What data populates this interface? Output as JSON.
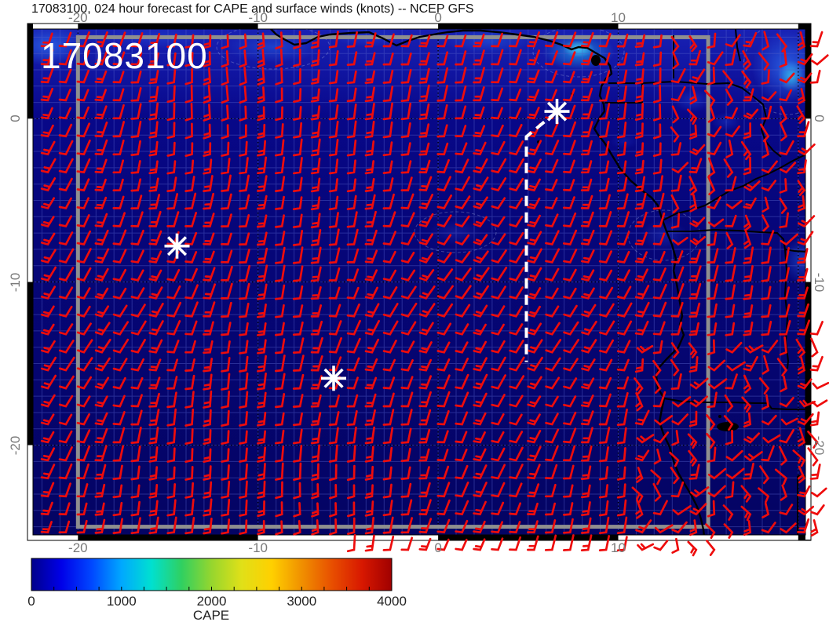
{
  "title": "17083100, 024 hour forecast for CAPE and surface winds (knots) -- NCEP GFS",
  "map": {
    "init_label": "17083100"
  },
  "chart_data": {
    "type": "heatmap",
    "subtype": "geographic map: shaded CAPE field with wind-barb vector overlay",
    "title": "17083100, 024 hour forecast for CAPE and surface winds (knots) -- NCEP GFS",
    "model": "NCEP GFS",
    "init_time": "17083100",
    "forecast_hour": "024",
    "shaded_field": "CAPE",
    "vector_field": "surface winds (knots)",
    "lon_range": [
      -22.5,
      20.4
    ],
    "lat_range": [
      -25.5,
      5.5
    ],
    "lon_ticks": [
      -20,
      -10,
      0,
      10
    ],
    "lat_ticks": [
      0,
      -10,
      -20
    ],
    "graticule_interval_deg": 1,
    "domain_box": {
      "lon_min": -20,
      "lon_max": 15,
      "lat_min": -25,
      "lat_max": 5
    },
    "colorbar": {
      "label": "CAPE",
      "min": 0,
      "max": 4000,
      "ticks": [
        0,
        1000,
        2000,
        3000,
        4000
      ],
      "palette": [
        "#00008b",
        "#0000e8",
        "#0047ff",
        "#00a8ff",
        "#00e0d0",
        "#30d060",
        "#96d62e",
        "#e0e018",
        "#ffd000",
        "#f09000",
        "#e85000",
        "#d81800",
        "#a00000"
      ]
    },
    "storm_markers": [
      {
        "lon": 6.6,
        "lat": 0.45
      },
      {
        "lon": -14.5,
        "lat": -7.8
      },
      {
        "lon": -5.8,
        "lat": -15.9
      }
    ],
    "track": [
      [
        6.6,
        0.45
      ],
      [
        4.9,
        -1.1
      ],
      [
        4.9,
        -14.9
      ]
    ],
    "cape_summary": "CAPE mostly below ~500 J/kg (dark blue) over the whole domain; brighter blue/cyan patches up to ~1200 J/kg along the Gulf of Guinea coast, near the Niger delta and near 20E close to the equator",
    "wind_summary": "red wind barbs about every 1 degree, mostly 5-15 kt southerly to southwesterly over the Atlantic, more variable in direction over land in the east"
  },
  "colors": {
    "page_bg": "#ffffff",
    "map_base": "#050572",
    "grid_line": "#5560c8",
    "barb_red": "#ee0c0c",
    "coast_black": "#000000",
    "domain_box_gray": "#8f8f8f",
    "track_white": "#ffffff",
    "axis_label_gray": "#7a7a7a",
    "title_black": "#111111"
  }
}
